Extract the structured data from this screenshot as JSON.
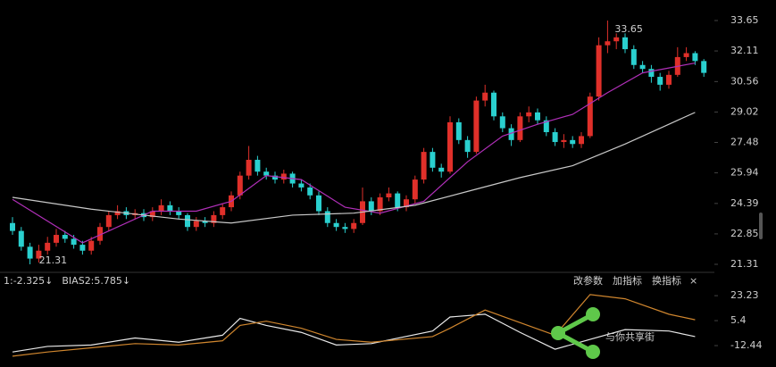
{
  "chart_data": {
    "type": "candlestick",
    "open": [
      23.4,
      23.0,
      22.2,
      21.6,
      22.0,
      22.4,
      22.8,
      22.6,
      22.3,
      22.0,
      22.5,
      23.2,
      23.8,
      24.0,
      23.8,
      23.9,
      23.7,
      24.0,
      24.3,
      24.0,
      23.8,
      23.2,
      23.5,
      23.4,
      23.8,
      24.2,
      24.8,
      25.8,
      26.6,
      26.0,
      25.8,
      25.6,
      25.9,
      25.4,
      25.2,
      24.8,
      24.0,
      23.4,
      23.2,
      23.1,
      23.4,
      24.5,
      24.0,
      24.7,
      24.9,
      24.2,
      24.6,
      25.6,
      27.0,
      26.2,
      26.0,
      28.5,
      27.6,
      27.0,
      29.6,
      30.0,
      28.8,
      28.2,
      27.6,
      28.8,
      29.0,
      28.6,
      28.0,
      27.5,
      27.6,
      27.4,
      27.8,
      29.8,
      32.4,
      32.6,
      32.8,
      32.2,
      31.4,
      31.2,
      30.8,
      30.4,
      30.9,
      31.8,
      32.0,
      31.6
    ],
    "high": [
      23.7,
      23.2,
      22.4,
      22.3,
      22.7,
      23.1,
      23.0,
      22.8,
      22.5,
      22.7,
      23.4,
      24.0,
      24.3,
      24.2,
      24.1,
      24.1,
      24.2,
      24.6,
      24.5,
      24.2,
      23.9,
      23.7,
      23.7,
      24.0,
      24.4,
      25.0,
      26.0,
      27.3,
      26.8,
      26.2,
      26.0,
      26.1,
      26.0,
      25.6,
      25.4,
      25.0,
      24.2,
      23.6,
      23.4,
      23.6,
      25.2,
      24.7,
      24.9,
      25.2,
      25.0,
      24.8,
      25.8,
      27.2,
      27.2,
      26.4,
      28.8,
      28.7,
      27.8,
      29.8,
      30.4,
      30.1,
      29.0,
      28.4,
      29.0,
      29.3,
      29.2,
      28.8,
      28.2,
      27.9,
      27.8,
      28.0,
      30.0,
      32.8,
      33.65,
      33.0,
      33.0,
      32.4,
      31.6,
      31.4,
      31.0,
      31.1,
      32.3,
      32.3,
      32.1,
      31.7
    ],
    "low": [
      22.8,
      22.0,
      21.31,
      21.4,
      21.8,
      22.2,
      22.4,
      22.1,
      21.8,
      21.8,
      22.3,
      23.0,
      23.6,
      23.6,
      23.6,
      23.5,
      23.5,
      23.8,
      23.8,
      23.6,
      23.0,
      23.0,
      23.2,
      23.2,
      23.6,
      24.0,
      24.6,
      25.6,
      25.8,
      25.6,
      25.4,
      25.4,
      25.2,
      25.0,
      24.6,
      23.8,
      23.2,
      23.0,
      22.9,
      22.9,
      23.3,
      23.8,
      23.8,
      24.5,
      24.0,
      24.0,
      24.4,
      25.4,
      26.0,
      25.7,
      25.9,
      27.4,
      26.7,
      26.9,
      29.3,
      28.6,
      28.0,
      27.3,
      27.5,
      28.5,
      28.4,
      27.8,
      27.3,
      27.2,
      27.2,
      27.2,
      27.7,
      29.6,
      32.0,
      32.2,
      32.0,
      31.2,
      31.0,
      30.5,
      30.1,
      30.2,
      30.8,
      31.6,
      31.4,
      30.8
    ],
    "close": [
      23.0,
      22.2,
      21.6,
      22.0,
      22.4,
      22.8,
      22.6,
      22.3,
      22.0,
      22.5,
      23.2,
      23.8,
      24.0,
      23.8,
      23.9,
      23.7,
      24.0,
      24.3,
      24.0,
      23.8,
      23.2,
      23.5,
      23.4,
      23.8,
      24.2,
      24.8,
      25.8,
      26.6,
      26.0,
      25.8,
      25.6,
      25.9,
      25.4,
      25.2,
      24.8,
      24.0,
      23.4,
      23.2,
      23.1,
      23.4,
      24.5,
      24.0,
      24.7,
      24.9,
      24.2,
      24.6,
      25.6,
      27.0,
      26.2,
      26.0,
      28.5,
      27.6,
      27.0,
      29.6,
      30.0,
      28.8,
      28.2,
      27.6,
      28.8,
      29.0,
      28.6,
      28.0,
      27.5,
      27.6,
      27.4,
      27.8,
      29.8,
      32.4,
      32.6,
      32.8,
      32.2,
      31.4,
      31.2,
      30.8,
      30.4,
      30.9,
      31.8,
      32.0,
      31.6,
      31.0
    ],
    "up_color": "#e0302a",
    "down_color": "#2ad0cf",
    "ylim": [
      21.31,
      33.65
    ],
    "yticks": [
      33.65,
      32.11,
      30.56,
      29.02,
      27.48,
      25.94,
      24.39,
      22.85,
      21.31
    ],
    "lines": [
      {
        "color": "#b02fb8",
        "x": [
          0,
          8,
          16,
          21,
          25,
          29,
          33,
          38,
          42,
          47,
          52,
          56,
          60,
          64,
          68,
          72,
          78
        ],
        "values": [
          24.6,
          22.4,
          24.0,
          24.0,
          24.5,
          25.8,
          25.6,
          24.2,
          23.9,
          24.5,
          26.5,
          27.8,
          28.4,
          28.9,
          30.0,
          31.0,
          31.5
        ]
      },
      {
        "color": "#c8c8c8",
        "x": [
          0,
          9,
          19,
          25,
          32,
          39,
          46,
          52,
          58,
          64,
          70,
          75,
          78
        ],
        "values": [
          24.7,
          24.1,
          23.6,
          23.4,
          23.8,
          23.9,
          24.3,
          25.0,
          25.7,
          26.3,
          27.4,
          28.4,
          29.0
        ]
      }
    ],
    "annotations": [
      "33.65",
      "21.31"
    ],
    "indicator": {
      "labels": [
        {
          "text": "1:-2.325↓",
          "color": "#dddddd"
        },
        {
          "text": "BIAS2:5.785↓",
          "color": "#e0923a"
        }
      ],
      "buttons": [
        "改参数",
        "加指标",
        "换指标",
        "×"
      ],
      "ylim": [
        -20.7,
        36.7
      ],
      "yticks": [
        23.23,
        5.4,
        -12.44
      ],
      "series": [
        {
          "color": "#e8e8e8",
          "x": [
            0,
            4,
            9,
            14,
            19,
            24,
            26,
            29,
            33,
            37,
            41,
            48,
            50,
            54,
            58,
            62,
            66,
            70,
            75,
            78
          ],
          "values": [
            -17,
            -13,
            -12,
            -7,
            -10,
            -5,
            7,
            2,
            -3,
            -12,
            -11,
            -2,
            8,
            10,
            -3,
            -15,
            -8,
            -1,
            -2,
            -6
          ]
        },
        {
          "color": "#d0862e",
          "x": [
            0,
            4,
            9,
            14,
            19,
            24,
            26,
            29,
            33,
            37,
            41,
            48,
            50,
            54,
            58,
            62,
            66,
            70,
            75,
            78
          ],
          "values": [
            -20,
            -17,
            -14,
            -11,
            -12,
            -9,
            2,
            5,
            0,
            -8,
            -10,
            -6,
            0,
            13,
            4,
            -5,
            24,
            21,
            10,
            6
          ]
        }
      ]
    },
    "watermark": "与你共享街"
  }
}
